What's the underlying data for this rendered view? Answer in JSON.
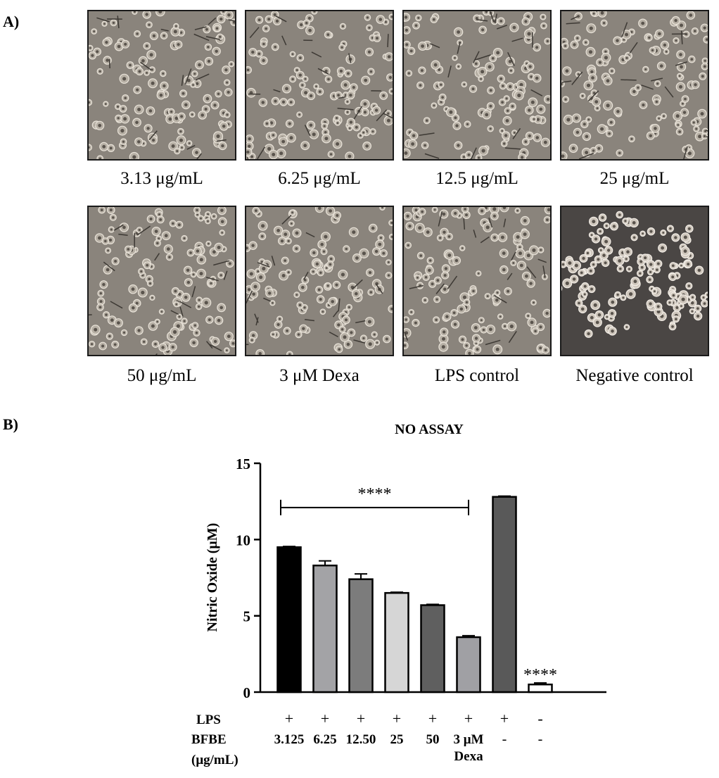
{
  "panel_a": {
    "label": "A)",
    "images": [
      {
        "caption": "3.13 μg/mL"
      },
      {
        "caption": "6.25 μg/mL"
      },
      {
        "caption": "12.5 μg/mL"
      },
      {
        "caption": "25 μg/mL"
      },
      {
        "caption": "50 μg/mL"
      },
      {
        "caption": "3 μM Dexa"
      },
      {
        "caption": "LPS control"
      },
      {
        "caption": "Negative control"
      }
    ]
  },
  "panel_b": {
    "label": "B)"
  },
  "chart_data": {
    "type": "bar",
    "title": "NO ASSAY",
    "ylabel": "Nitric Oxide   (μM)",
    "ylim": [
      0,
      15
    ],
    "yticks": [
      "0",
      "5",
      "10",
      "15"
    ],
    "row_labels": {
      "lps": "LPS",
      "bfbe": "BFBE",
      "unit": "(μg/mL)"
    },
    "categories": [
      {
        "lps": "+",
        "bfbe": "3.125"
      },
      {
        "lps": "+",
        "bfbe": "6.25"
      },
      {
        "lps": "+",
        "bfbe": "12.50"
      },
      {
        "lps": "+",
        "bfbe": "25"
      },
      {
        "lps": "+",
        "bfbe": "50"
      },
      {
        "lps": "+",
        "bfbe": "3 μM",
        "bfbe2": "Dexa"
      },
      {
        "lps": "+",
        "bfbe": "-"
      },
      {
        "lps": "-",
        "bfbe": "-"
      }
    ],
    "values": [
      9.5,
      8.3,
      7.4,
      6.5,
      5.7,
      3.6,
      12.8,
      0.5
    ],
    "errors": [
      0.05,
      0.3,
      0.35,
      0.05,
      0.05,
      0.1,
      0.05,
      0.1
    ],
    "significance": {
      "bracket_label": "****",
      "bracket_value": 12.1,
      "bar_label": "****"
    },
    "colors": {
      "fills": [
        "#000000",
        "#a3a3a6",
        "#7c7c7c",
        "#d6d6d6",
        "#5f5f5f",
        "#a0a0a4",
        "#595959",
        "#ffffff"
      ]
    }
  }
}
